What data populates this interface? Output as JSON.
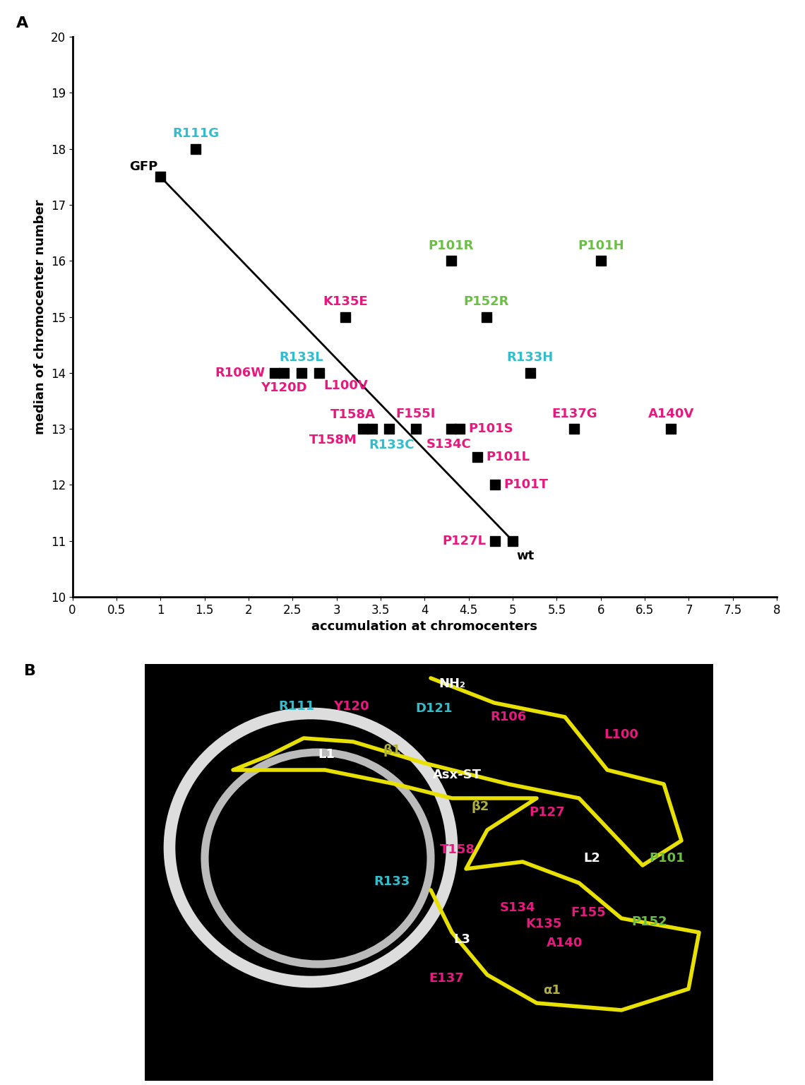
{
  "panel_labels": [
    "A",
    "B"
  ],
  "chart_data": {
    "type": "scatter",
    "xlabel": "accumulation at chromocenters",
    "ylabel": "median of chromocenter number",
    "xlim": [
      0,
      8
    ],
    "xticks": [
      0,
      0.5,
      1,
      1.5,
      2,
      2.5,
      3,
      3.5,
      4,
      4.5,
      5,
      5.5,
      6,
      6.5,
      7,
      7.5,
      8
    ],
    "ylim": [
      10,
      20
    ],
    "yticks": [
      10,
      11,
      12,
      13,
      14,
      15,
      16,
      17,
      18,
      19,
      20
    ],
    "grid": false,
    "series": [
      {
        "type": "scatter",
        "marker": "square",
        "color": "#000000",
        "labels": [
          "GFP",
          "R111G",
          "P101R",
          "P101H",
          "K135E",
          "P152R",
          "R133L",
          "R106W",
          "Y120D",
          "L100V",
          "R133H",
          "T158A",
          "T158M",
          "R133C",
          "F155I",
          "S134C",
          "P101S",
          "E137G",
          "A140V",
          "P101L",
          "P101T",
          "P127L",
          "wt"
        ],
        "x": [
          1,
          1.4,
          4.3,
          6,
          3.1,
          4.7,
          2.6,
          2.3,
          2.4,
          2.8,
          5.2,
          3.4,
          3.3,
          3.6,
          3.9,
          4.3,
          4.4,
          5.7,
          6.8,
          4.6,
          4.8,
          4.8,
          5
        ],
        "values": [
          17.5,
          18,
          16,
          16,
          15,
          15,
          14,
          14,
          14,
          14,
          14,
          13,
          13,
          13,
          13,
          13,
          13,
          13,
          13,
          12.5,
          12,
          11,
          11
        ],
        "label_colors": [
          "#000000",
          "#33bccc",
          "#6cbf45",
          "#6cbf45",
          "#e5197e",
          "#6cbf45",
          "#33bccc",
          "#e5197e",
          "#e5197e",
          "#e5197e",
          "#33bccc",
          "#e5197e",
          "#e5197e",
          "#33bccc",
          "#e5197e",
          "#e5197e",
          "#e5197e",
          "#e5197e",
          "#e5197e",
          "#e5197e",
          "#e5197e",
          "#e5197e",
          "#000000"
        ]
      },
      {
        "type": "line",
        "line_style": "solid",
        "color": "#000000",
        "x": [
          1,
          5
        ],
        "values": [
          17.5,
          11
        ]
      }
    ]
  },
  "structure_image": {
    "labels": [
      {
        "text": "NH₂",
        "color": "#ffffff"
      },
      {
        "text": "L1",
        "color": "#ffffff"
      },
      {
        "text": "R111",
        "color": "#33bccc"
      },
      {
        "text": "Y120",
        "color": "#e5197e"
      },
      {
        "text": "D121",
        "color": "#33bccc"
      },
      {
        "text": "β1",
        "color": "#b0b040"
      },
      {
        "text": "R106",
        "color": "#e5197e"
      },
      {
        "text": "L100",
        "color": "#e5197e"
      },
      {
        "text": "Asx-ST",
        "color": "#ffffff"
      },
      {
        "text": "β2",
        "color": "#b0b040"
      },
      {
        "text": "P127",
        "color": "#e5197e"
      },
      {
        "text": "P101",
        "color": "#6cbf45"
      },
      {
        "text": "L2",
        "color": "#ffffff"
      },
      {
        "text": "T158",
        "color": "#e5197e"
      },
      {
        "text": "R133",
        "color": "#33bccc"
      },
      {
        "text": "S134",
        "color": "#e5197e"
      },
      {
        "text": "K135",
        "color": "#e5197e"
      },
      {
        "text": "F155",
        "color": "#e5197e"
      },
      {
        "text": "P152",
        "color": "#6cbf45"
      },
      {
        "text": "L3",
        "color": "#ffffff"
      },
      {
        "text": "E137",
        "color": "#e5197e"
      },
      {
        "text": "A140",
        "color": "#e5197e"
      },
      {
        "text": "α1",
        "color": "#b0b040"
      }
    ]
  }
}
